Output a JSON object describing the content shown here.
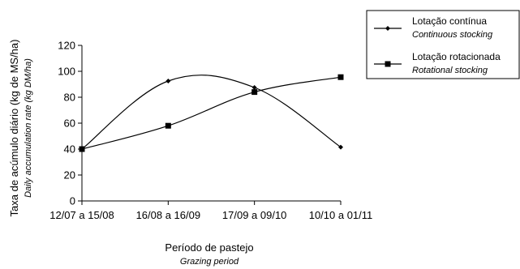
{
  "chart_data": {
    "type": "line",
    "title": "",
    "categories": [
      "12/07 a 15/08",
      "16/08 a 16/09",
      "17/09 a 09/10",
      "10/10 a 01/11"
    ],
    "xlabel": "Período de pastejo",
    "xlabel_en": "Grazing period",
    "ylabel": "Taxa de acúmulo diário (kg de MS/ha)",
    "ylabel_en": "Daily accumulation rate (kg DM/ha)",
    "ylim": [
      0,
      120
    ],
    "yticks": [
      0,
      20,
      40,
      60,
      80,
      100,
      120
    ],
    "grid": false,
    "legend_position": "top-right",
    "series": [
      {
        "name": "Lotação contínua",
        "name_en": "Continuous stocking",
        "marker": "diamond",
        "color": "#000000",
        "values": [
          40,
          92.5,
          87.5,
          41.5
        ]
      },
      {
        "name": "Lotação rotacionada",
        "name_en": "Rotational stocking",
        "marker": "square",
        "color": "#000000",
        "values": [
          40,
          58,
          84,
          95.5
        ]
      }
    ]
  }
}
